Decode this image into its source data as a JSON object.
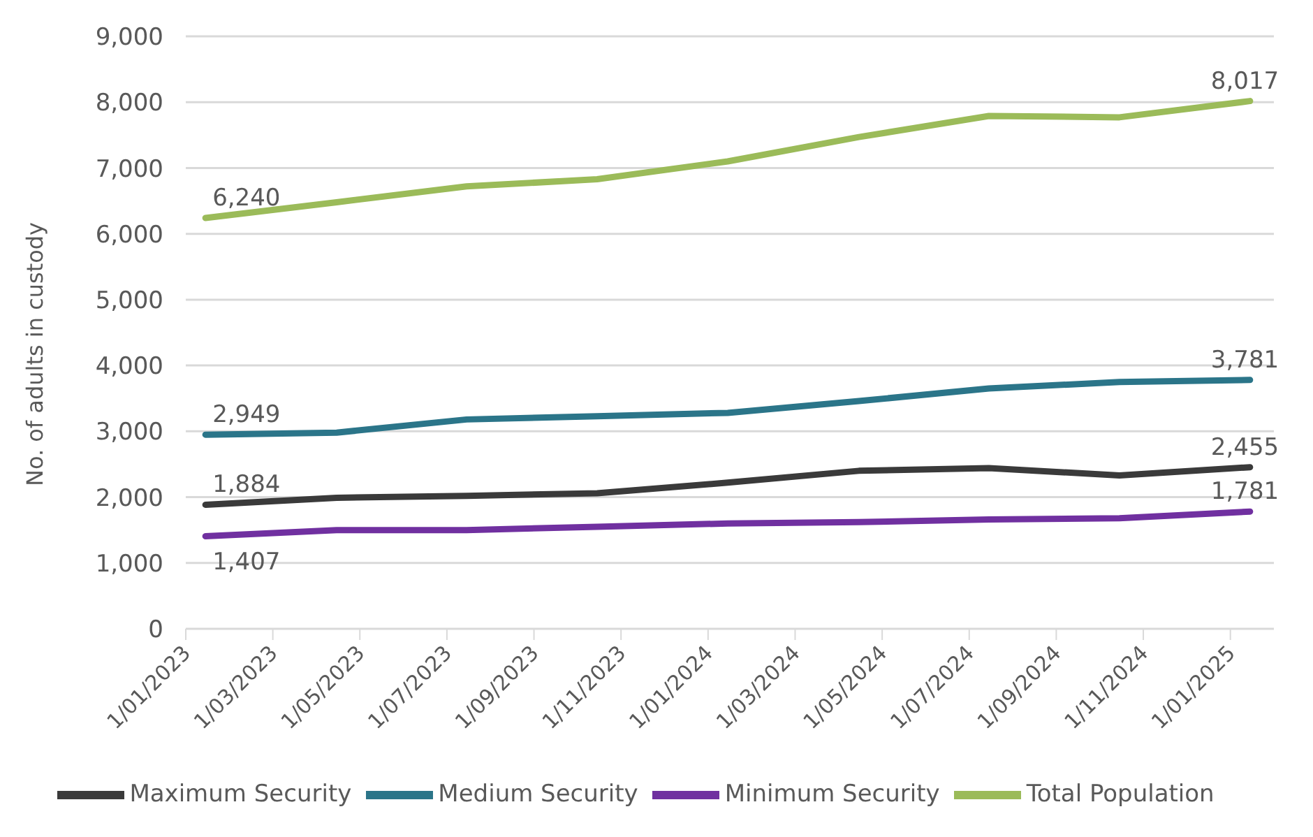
{
  "chart_data": {
    "type": "line",
    "ylabel": "No. of adults in custody",
    "x": [
      "2023-01-15",
      "2023-04-15",
      "2023-07-15",
      "2023-10-15",
      "2024-01-15",
      "2024-04-15",
      "2024-07-15",
      "2024-10-15",
      "2025-01-15"
    ],
    "series": [
      {
        "name": "Maximum Security",
        "color": "#3a3a3a",
        "values": [
          1884,
          1990,
          2020,
          2060,
          2220,
          2400,
          2440,
          2330,
          2455
        ],
        "value_labels": [
          "1,884",
          null,
          null,
          null,
          null,
          null,
          null,
          null,
          "2,455"
        ]
      },
      {
        "name": "Medium Security",
        "color": "#2b7589",
        "values": [
          2949,
          2980,
          3180,
          3230,
          3280,
          3460,
          3650,
          3750,
          3781
        ],
        "value_labels": [
          "2,949",
          null,
          null,
          null,
          null,
          null,
          null,
          null,
          "3,781"
        ]
      },
      {
        "name": "Minimum Security",
        "color": "#7030a0",
        "values": [
          1407,
          1500,
          1500,
          1550,
          1600,
          1620,
          1660,
          1680,
          1781
        ],
        "value_labels": [
          "1,407",
          null,
          null,
          null,
          null,
          null,
          null,
          null,
          "1,781"
        ]
      },
      {
        "name": "Total Population",
        "color": "#9bbb59",
        "values": [
          6240,
          6480,
          6720,
          6830,
          7100,
          7470,
          7790,
          7770,
          8017
        ],
        "value_labels": [
          "6,240",
          null,
          null,
          null,
          null,
          null,
          null,
          null,
          "8,017"
        ]
      }
    ],
    "xlim": [
      "2023-01-01",
      "2025-02-01"
    ],
    "xticks": [
      {
        "value": "2023-01-01",
        "label": "1/01/2023"
      },
      {
        "value": "2023-03-01",
        "label": "1/03/2023"
      },
      {
        "value": "2023-05-01",
        "label": "1/05/2023"
      },
      {
        "value": "2023-07-01",
        "label": "1/07/2023"
      },
      {
        "value": "2023-09-01",
        "label": "1/09/2023"
      },
      {
        "value": "2023-11-01",
        "label": "1/11/2023"
      },
      {
        "value": "2024-01-01",
        "label": "1/01/2024"
      },
      {
        "value": "2024-03-01",
        "label": "1/03/2024"
      },
      {
        "value": "2024-05-01",
        "label": "1/05/2024"
      },
      {
        "value": "2024-07-01",
        "label": "1/07/2024"
      },
      {
        "value": "2024-09-01",
        "label": "1/09/2024"
      },
      {
        "value": "2024-11-01",
        "label": "1/11/2024"
      },
      {
        "value": "2025-01-01",
        "label": "1/01/2025"
      }
    ],
    "ylim": [
      0,
      9000
    ],
    "yticks": [
      {
        "value": 0,
        "label": "0"
      },
      {
        "value": 1000,
        "label": "1,000"
      },
      {
        "value": 2000,
        "label": "2,000"
      },
      {
        "value": 3000,
        "label": "3,000"
      },
      {
        "value": 4000,
        "label": "4,000"
      },
      {
        "value": 5000,
        "label": "5,000"
      },
      {
        "value": 6000,
        "label": "6,000"
      },
      {
        "value": 7000,
        "label": "7,000"
      },
      {
        "value": 8000,
        "label": "8,000"
      },
      {
        "value": 9000,
        "label": "9,000"
      }
    ],
    "grid": "y",
    "legend": "bottom",
    "marker": "none",
    "line_style": "solid"
  }
}
